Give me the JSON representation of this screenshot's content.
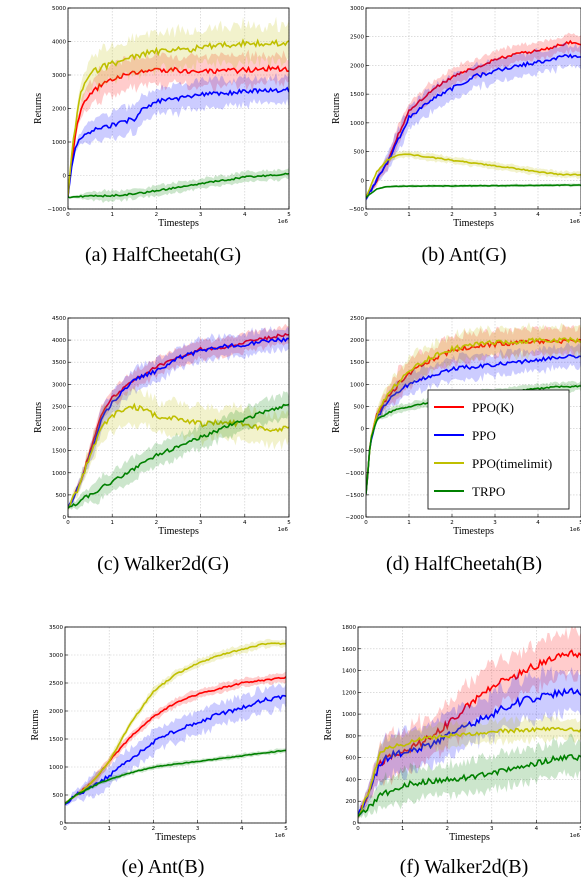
{
  "legend": {
    "entries": [
      {
        "name": "PPO(K)",
        "color": "#ff0000"
      },
      {
        "name": "PPO",
        "color": "#0000ff"
      },
      {
        "name": "PPO(timelimit)",
        "color": "#bfbf00"
      },
      {
        "name": "TRPO",
        "color": "#008000"
      }
    ],
    "placement": "lower-right of panel (d)"
  },
  "chart_data": [
    {
      "type": "line",
      "title": "(a) HalfCheetah(G)",
      "caption": "(a) HalfCheetah(G)",
      "xlabel": "Timesteps",
      "ylabel": "Returns",
      "x_offset_label": "1e6",
      "xlim": [
        0,
        5
      ],
      "ylim": [
        -1000,
        5000
      ],
      "yticks": [
        -1000,
        0,
        1000,
        2000,
        3000,
        4000,
        5000
      ],
      "xticks": [
        0,
        1,
        2,
        3,
        4,
        5
      ],
      "grid": true,
      "series": [
        {
          "name": "PPO(K)",
          "x": [
            0,
            0.1,
            0.2,
            0.3,
            0.5,
            0.7,
            1.0,
            1.5,
            2.0,
            2.5,
            3.0,
            3.5,
            4.0,
            4.5,
            5.0
          ],
          "y": [
            -650,
            600,
            1500,
            2000,
            2400,
            2650,
            2900,
            3050,
            3150,
            3150,
            3100,
            3100,
            3150,
            3200,
            3150
          ],
          "band": 450
        },
        {
          "name": "PPO",
          "x": [
            0,
            0.1,
            0.2,
            0.3,
            0.5,
            0.7,
            1.0,
            1.5,
            1.7,
            2.0,
            2.5,
            3.0,
            3.5,
            4.0,
            4.5,
            5.0
          ],
          "y": [
            -650,
            500,
            900,
            1100,
            1300,
            1400,
            1500,
            1700,
            2000,
            2200,
            2300,
            2400,
            2450,
            2500,
            2550,
            2550
          ],
          "band": 400
        },
        {
          "name": "PPO(timelimit)",
          "x": [
            0,
            0.1,
            0.2,
            0.3,
            0.5,
            0.7,
            1.0,
            1.5,
            2.0,
            2.5,
            3.0,
            3.5,
            4.0,
            4.5,
            5.0
          ],
          "y": [
            -650,
            800,
            1800,
            2500,
            3000,
            3200,
            3350,
            3550,
            3700,
            3750,
            3800,
            3900,
            3950,
            3950,
            3950
          ],
          "band": 550
        },
        {
          "name": "TRPO",
          "x": [
            0,
            0.5,
            1.0,
            1.5,
            2.0,
            2.5,
            3.0,
            3.5,
            4.0,
            4.5,
            5.0
          ],
          "y": [
            -650,
            -620,
            -600,
            -550,
            -450,
            -350,
            -250,
            -150,
            -50,
            0,
            50
          ],
          "band": 150
        }
      ]
    },
    {
      "type": "line",
      "title": "(b) Ant(G)",
      "caption": "(b) Ant(G)",
      "xlabel": "Timesteps",
      "ylabel": "Returns",
      "x_offset_label": "1e6",
      "xlim": [
        0,
        5
      ],
      "ylim": [
        -500,
        3000
      ],
      "yticks": [
        -500,
        0,
        500,
        1000,
        1500,
        2000,
        2500,
        3000
      ],
      "xticks": [
        0,
        1,
        2,
        3,
        4,
        5
      ],
      "grid": true,
      "series": [
        {
          "name": "PPO(K)",
          "x": [
            0,
            0.25,
            0.5,
            0.75,
            1.0,
            1.5,
            2.0,
            2.5,
            3.0,
            3.5,
            4.0,
            4.5,
            4.75,
            5.0
          ],
          "y": [
            -300,
            0,
            300,
            800,
            1200,
            1550,
            1800,
            1950,
            2100,
            2200,
            2250,
            2350,
            2400,
            2350
          ],
          "band": 150
        },
        {
          "name": "PPO",
          "x": [
            0,
            0.25,
            0.5,
            0.75,
            1.0,
            1.5,
            2.0,
            2.5,
            3.0,
            3.5,
            4.0,
            4.5,
            5.0
          ],
          "y": [
            -300,
            0,
            300,
            700,
            1100,
            1400,
            1600,
            1800,
            1900,
            2000,
            2050,
            2150,
            2150
          ],
          "band": 200
        },
        {
          "name": "PPO(timelimit)",
          "x": [
            0,
            0.25,
            0.5,
            0.75,
            1.0,
            1.5,
            2.0,
            2.5,
            3.0,
            3.5,
            4.0,
            4.5,
            5.0
          ],
          "y": [
            -300,
            150,
            350,
            450,
            450,
            400,
            350,
            300,
            250,
            200,
            150,
            100,
            100
          ],
          "band": 60
        },
        {
          "name": "TRPO",
          "x": [
            0,
            0.25,
            0.5,
            1.0,
            1.5,
            2.0,
            2.5,
            3.0,
            3.5,
            4.0,
            4.5,
            5.0
          ],
          "y": [
            -300,
            -150,
            -110,
            -100,
            -100,
            -100,
            -95,
            -95,
            -90,
            -90,
            -85,
            -85
          ],
          "band": 25
        }
      ]
    },
    {
      "type": "line",
      "title": "(c) Walker2d(G)",
      "caption": "(c) Walker2d(G)",
      "xlabel": "Timesteps",
      "ylabel": "Returns",
      "x_offset_label": "1e6",
      "xlim": [
        0,
        5
      ],
      "ylim": [
        0,
        4500
      ],
      "yticks": [
        0,
        500,
        1000,
        1500,
        2000,
        2500,
        3000,
        3500,
        4000,
        4500
      ],
      "xticks": [
        0,
        1,
        2,
        3,
        4,
        5
      ],
      "grid": true,
      "series": [
        {
          "name": "PPO(K)",
          "x": [
            0,
            0.25,
            0.5,
            0.75,
            1.0,
            1.5,
            2.0,
            2.5,
            3.0,
            3.5,
            4.0,
            4.5,
            5.0
          ],
          "y": [
            200,
            700,
            1500,
            2300,
            2700,
            3100,
            3400,
            3600,
            3800,
            3800,
            3950,
            4050,
            4150
          ],
          "band": 200
        },
        {
          "name": "PPO",
          "x": [
            0,
            0.25,
            0.5,
            0.75,
            1.0,
            1.5,
            2.0,
            2.5,
            3.0,
            3.5,
            4.0,
            4.5,
            5.0
          ],
          "y": [
            200,
            700,
            1400,
            2200,
            2600,
            3100,
            3300,
            3600,
            3750,
            3850,
            3900,
            4000,
            4000
          ],
          "band": 250
        },
        {
          "name": "PPO(timelimit)",
          "x": [
            0,
            0.25,
            0.5,
            0.75,
            1.0,
            1.5,
            2.0,
            2.5,
            3.0,
            3.5,
            4.0,
            4.5,
            5.0
          ],
          "y": [
            200,
            700,
            1400,
            2000,
            2300,
            2500,
            2300,
            2200,
            2100,
            2150,
            2100,
            2000,
            2000
          ],
          "band": 350
        },
        {
          "name": "TRPO",
          "x": [
            0,
            0.5,
            1.0,
            1.5,
            2.0,
            2.5,
            3.0,
            3.5,
            4.0,
            4.5,
            5.0
          ],
          "y": [
            200,
            500,
            800,
            1100,
            1400,
            1600,
            1800,
            2000,
            2200,
            2400,
            2550
          ],
          "band": 250
        }
      ]
    },
    {
      "type": "line",
      "title": "(d) HalfCheetah(B)",
      "caption": "(d) HalfCheetah(B)",
      "xlabel": "Timesteps",
      "ylabel": "Returns",
      "x_offset_label": "1e6",
      "xlim": [
        0,
        5
      ],
      "ylim": [
        -2000,
        2500
      ],
      "yticks": [
        -2000,
        -1500,
        -1000,
        -500,
        0,
        500,
        1000,
        1500,
        2000,
        2500
      ],
      "xticks": [
        0,
        1,
        2,
        3,
        4,
        5
      ],
      "grid": true,
      "legend": "lower-right",
      "series": [
        {
          "name": "PPO(K)",
          "x": [
            0,
            0.1,
            0.25,
            0.5,
            0.75,
            1.0,
            1.5,
            2.0,
            2.5,
            3.0,
            3.5,
            4.0,
            4.5,
            5.0
          ],
          "y": [
            -1500,
            -300,
            300,
            700,
            1000,
            1250,
            1550,
            1750,
            1850,
            1900,
            1950,
            1950,
            1950,
            2000
          ],
          "band": 300
        },
        {
          "name": "PPO",
          "x": [
            0,
            0.1,
            0.25,
            0.5,
            0.75,
            1.0,
            1.5,
            2.0,
            2.5,
            3.0,
            3.5,
            4.0,
            4.5,
            5.0
          ],
          "y": [
            -1500,
            -300,
            250,
            600,
            850,
            1000,
            1200,
            1350,
            1400,
            1450,
            1500,
            1550,
            1600,
            1650
          ],
          "band": 250
        },
        {
          "name": "PPO(timelimit)",
          "x": [
            0,
            0.1,
            0.25,
            0.5,
            0.75,
            1.0,
            1.5,
            2.0,
            2.5,
            3.0,
            3.5,
            4.0,
            4.5,
            5.0
          ],
          "y": [
            -1500,
            -300,
            300,
            750,
            1050,
            1300,
            1600,
            1800,
            1900,
            1950,
            1950,
            2000,
            2000,
            2000
          ],
          "band": 300
        },
        {
          "name": "TRPO",
          "x": [
            0,
            0.1,
            0.25,
            0.5,
            0.75,
            1.0,
            1.5,
            2.0,
            2.5,
            3.0,
            3.5,
            4.0,
            4.5,
            5.0
          ],
          "y": [
            -1500,
            -300,
            200,
            350,
            450,
            500,
            600,
            700,
            750,
            800,
            850,
            900,
            950,
            950
          ],
          "band": 100
        }
      ]
    },
    {
      "type": "line",
      "title": "(e) Ant(B)",
      "caption": "(e) Ant(B)",
      "xlabel": "Timesteps",
      "ylabel": "Returns",
      "x_offset_label": "1e6",
      "xlim": [
        0,
        5
      ],
      "ylim": [
        0,
        3500
      ],
      "yticks": [
        0,
        500,
        1000,
        1500,
        2000,
        2500,
        3000,
        3500
      ],
      "xticks": [
        0,
        1,
        2,
        3,
        4,
        5
      ],
      "grid": true,
      "series": [
        {
          "name": "PPO(K)",
          "x": [
            0,
            0.25,
            0.5,
            0.75,
            1.0,
            1.5,
            2.0,
            2.5,
            3.0,
            3.5,
            4.0,
            4.5,
            5.0
          ],
          "y": [
            350,
            500,
            650,
            850,
            1100,
            1550,
            1900,
            2150,
            2300,
            2400,
            2500,
            2550,
            2600
          ],
          "band": 80
        },
        {
          "name": "PPO",
          "x": [
            0,
            0.25,
            0.5,
            0.75,
            1.0,
            1.5,
            2.0,
            2.5,
            3.0,
            3.5,
            4.0,
            4.5,
            5.0
          ],
          "y": [
            350,
            500,
            600,
            700,
            850,
            1150,
            1450,
            1650,
            1800,
            1950,
            2050,
            2200,
            2250
          ],
          "band": 200
        },
        {
          "name": "PPO(timelimit)",
          "x": [
            0,
            0.25,
            0.5,
            0.75,
            1.0,
            1.5,
            2.0,
            2.5,
            3.0,
            3.5,
            4.0,
            4.5,
            5.0
          ],
          "y": [
            350,
            500,
            650,
            850,
            1100,
            1800,
            2350,
            2650,
            2850,
            3000,
            3100,
            3200,
            3200
          ],
          "band": 70
        },
        {
          "name": "TRPO",
          "x": [
            0,
            0.25,
            0.5,
            0.75,
            1.0,
            1.5,
            2.0,
            2.5,
            3.0,
            3.5,
            4.0,
            4.5,
            5.0
          ],
          "y": [
            350,
            500,
            600,
            700,
            780,
            900,
            1000,
            1050,
            1100,
            1150,
            1200,
            1250,
            1300
          ],
          "band": 40
        }
      ]
    },
    {
      "type": "line",
      "title": "(f) Walker2d(B)",
      "caption": "(f) Walker2d(B)",
      "xlabel": "Timesteps",
      "ylabel": "Returns",
      "x_offset_label": "1e6",
      "xlim": [
        0,
        5
      ],
      "ylim": [
        0,
        1800
      ],
      "yticks": [
        0,
        200,
        400,
        600,
        800,
        1000,
        1200,
        1400,
        1600,
        1800
      ],
      "xticks": [
        0,
        1,
        2,
        3,
        4,
        5
      ],
      "grid": true,
      "series": [
        {
          "name": "PPO(K)",
          "x": [
            0,
            0.25,
            0.5,
            0.75,
            1.0,
            1.5,
            2.0,
            2.5,
            3.0,
            3.5,
            4.0,
            4.5,
            5.0
          ],
          "y": [
            50,
            300,
            550,
            620,
            650,
            750,
            900,
            1100,
            1250,
            1350,
            1450,
            1550,
            1550
          ],
          "band": 200
        },
        {
          "name": "PPO",
          "x": [
            0,
            0.25,
            0.5,
            0.75,
            1.0,
            1.5,
            2.0,
            2.5,
            3.0,
            3.5,
            4.0,
            4.5,
            5.0
          ],
          "y": [
            50,
            300,
            550,
            620,
            650,
            700,
            800,
            900,
            1000,
            1100,
            1150,
            1200,
            1200
          ],
          "band": 200
        },
        {
          "name": "PPO(timelimit)",
          "x": [
            0,
            0.25,
            0.5,
            0.75,
            1.0,
            1.5,
            2.0,
            2.5,
            3.0,
            3.5,
            4.0,
            4.5,
            5.0
          ],
          "y": [
            50,
            300,
            650,
            700,
            720,
            780,
            800,
            820,
            840,
            850,
            860,
            860,
            850
          ],
          "band": 100
        },
        {
          "name": "TRPO",
          "x": [
            0,
            0.25,
            0.5,
            0.75,
            1.0,
            1.5,
            2.0,
            2.5,
            3.0,
            3.5,
            4.0,
            4.5,
            5.0
          ],
          "y": [
            50,
            150,
            250,
            300,
            350,
            380,
            400,
            420,
            450,
            500,
            550,
            600,
            600
          ],
          "band": 150
        }
      ]
    }
  ]
}
